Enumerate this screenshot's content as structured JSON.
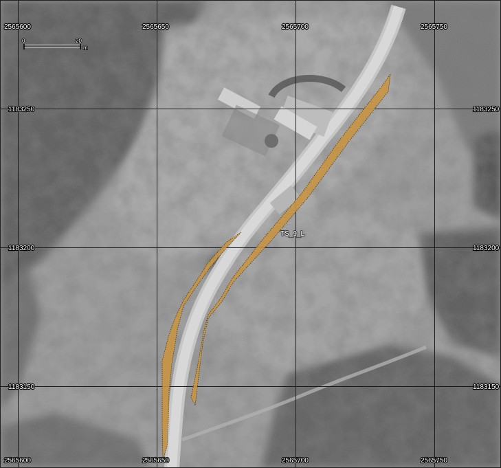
{
  "map": {
    "grid_x_labels": [
      "2565600",
      "2565650",
      "2565700",
      "2565750"
    ],
    "grid_y_labels": [
      "1183250",
      "1183200",
      "1183150"
    ],
    "feature_label": "TS_9_L",
    "scale_bar": {
      "start": "0",
      "end": "20",
      "unit": "m"
    },
    "colors": {
      "polygon_fill": "#c89443",
      "grid_line": "#1a1a1a",
      "background": "#8e8e8e"
    }
  }
}
